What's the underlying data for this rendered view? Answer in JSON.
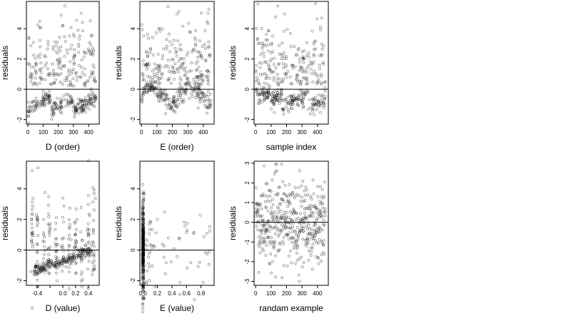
{
  "chart_data": [
    {
      "type": "scatter",
      "xlabel": "D (order)",
      "ylabel": "residuals",
      "xlim": [
        -10,
        470
      ],
      "ylim": [
        -2.3,
        5.8
      ],
      "xticks": [
        0,
        100,
        200,
        300,
        400
      ],
      "yticks": [
        -2,
        0,
        2,
        4
      ],
      "ytick_labels": [
        "-2",
        "0",
        "2",
        "4"
      ],
      "hline": 0,
      "gen": "D_order",
      "points": []
    },
    {
      "type": "scatter",
      "xlabel": "E (order)",
      "ylabel": "residuals",
      "xlim": [
        -10,
        470
      ],
      "ylim": [
        -2.3,
        5.8
      ],
      "xticks": [
        0,
        100,
        200,
        300,
        400
      ],
      "yticks": [
        -2,
        0,
        2,
        4
      ],
      "ytick_labels": [
        "-2",
        "0",
        "2",
        "4"
      ],
      "hline": 0,
      "gen": "E_order",
      "points": []
    },
    {
      "type": "scatter",
      "xlabel": "sample index",
      "ylabel": "residuals",
      "xlim": [
        -10,
        470
      ],
      "ylim": [
        -2.3,
        5.8
      ],
      "xticks": [
        0,
        100,
        200,
        300,
        400
      ],
      "yticks": [
        -2,
        0,
        2,
        4
      ],
      "ytick_labels": [
        "-2",
        "0",
        "2",
        "4"
      ],
      "hline": 0,
      "gen": "sample",
      "points": []
    },
    {
      "type": "scatter",
      "xlabel": "D (value)",
      "ylabel": "residuals",
      "xlim": [
        -0.57,
        0.57
      ],
      "ylim": [
        -2.3,
        5.8
      ],
      "xticks": [
        -0.4,
        -0.2,
        0.0,
        0.2,
        0.4
      ],
      "xtick_labels": [
        "-0.4",
        "",
        "0.0",
        "0.2",
        "0.4"
      ],
      "yticks": [
        -2,
        0,
        2,
        4
      ],
      "ytick_labels": [
        "-2",
        "0",
        "2",
        "4"
      ],
      "hline": 0,
      "gen": "D_value",
      "points": []
    },
    {
      "type": "scatter",
      "xlabel": "E (value)",
      "ylabel": "residuals",
      "xlim": [
        -0.04,
        0.98
      ],
      "ylim": [
        -2.3,
        5.8
      ],
      "xticks": [
        0.0,
        0.2,
        0.4,
        0.6,
        0.8
      ],
      "xtick_labels": [
        "0.0",
        "0.2",
        "0.4",
        "0.6",
        "0.8"
      ],
      "yticks": [
        -2,
        0,
        2,
        4
      ],
      "ytick_labels": [
        "-2",
        "0",
        "2",
        "4"
      ],
      "hline": 0,
      "gen": "E_value",
      "points": []
    },
    {
      "type": "scatter",
      "xlabel": "randam example",
      "ylabel": "residuals",
      "xlim": [
        -10,
        470
      ],
      "ylim": [
        -3.2,
        3.1
      ],
      "xticks": [
        0,
        100,
        200,
        300,
        400
      ],
      "yticks": [
        -3,
        -2,
        -1,
        0,
        1,
        2,
        3
      ],
      "ytick_labels": [
        "-3",
        "-2",
        "-1",
        "0",
        "1",
        "2",
        "3"
      ],
      "hline": 0,
      "gen": "random",
      "points": []
    }
  ]
}
